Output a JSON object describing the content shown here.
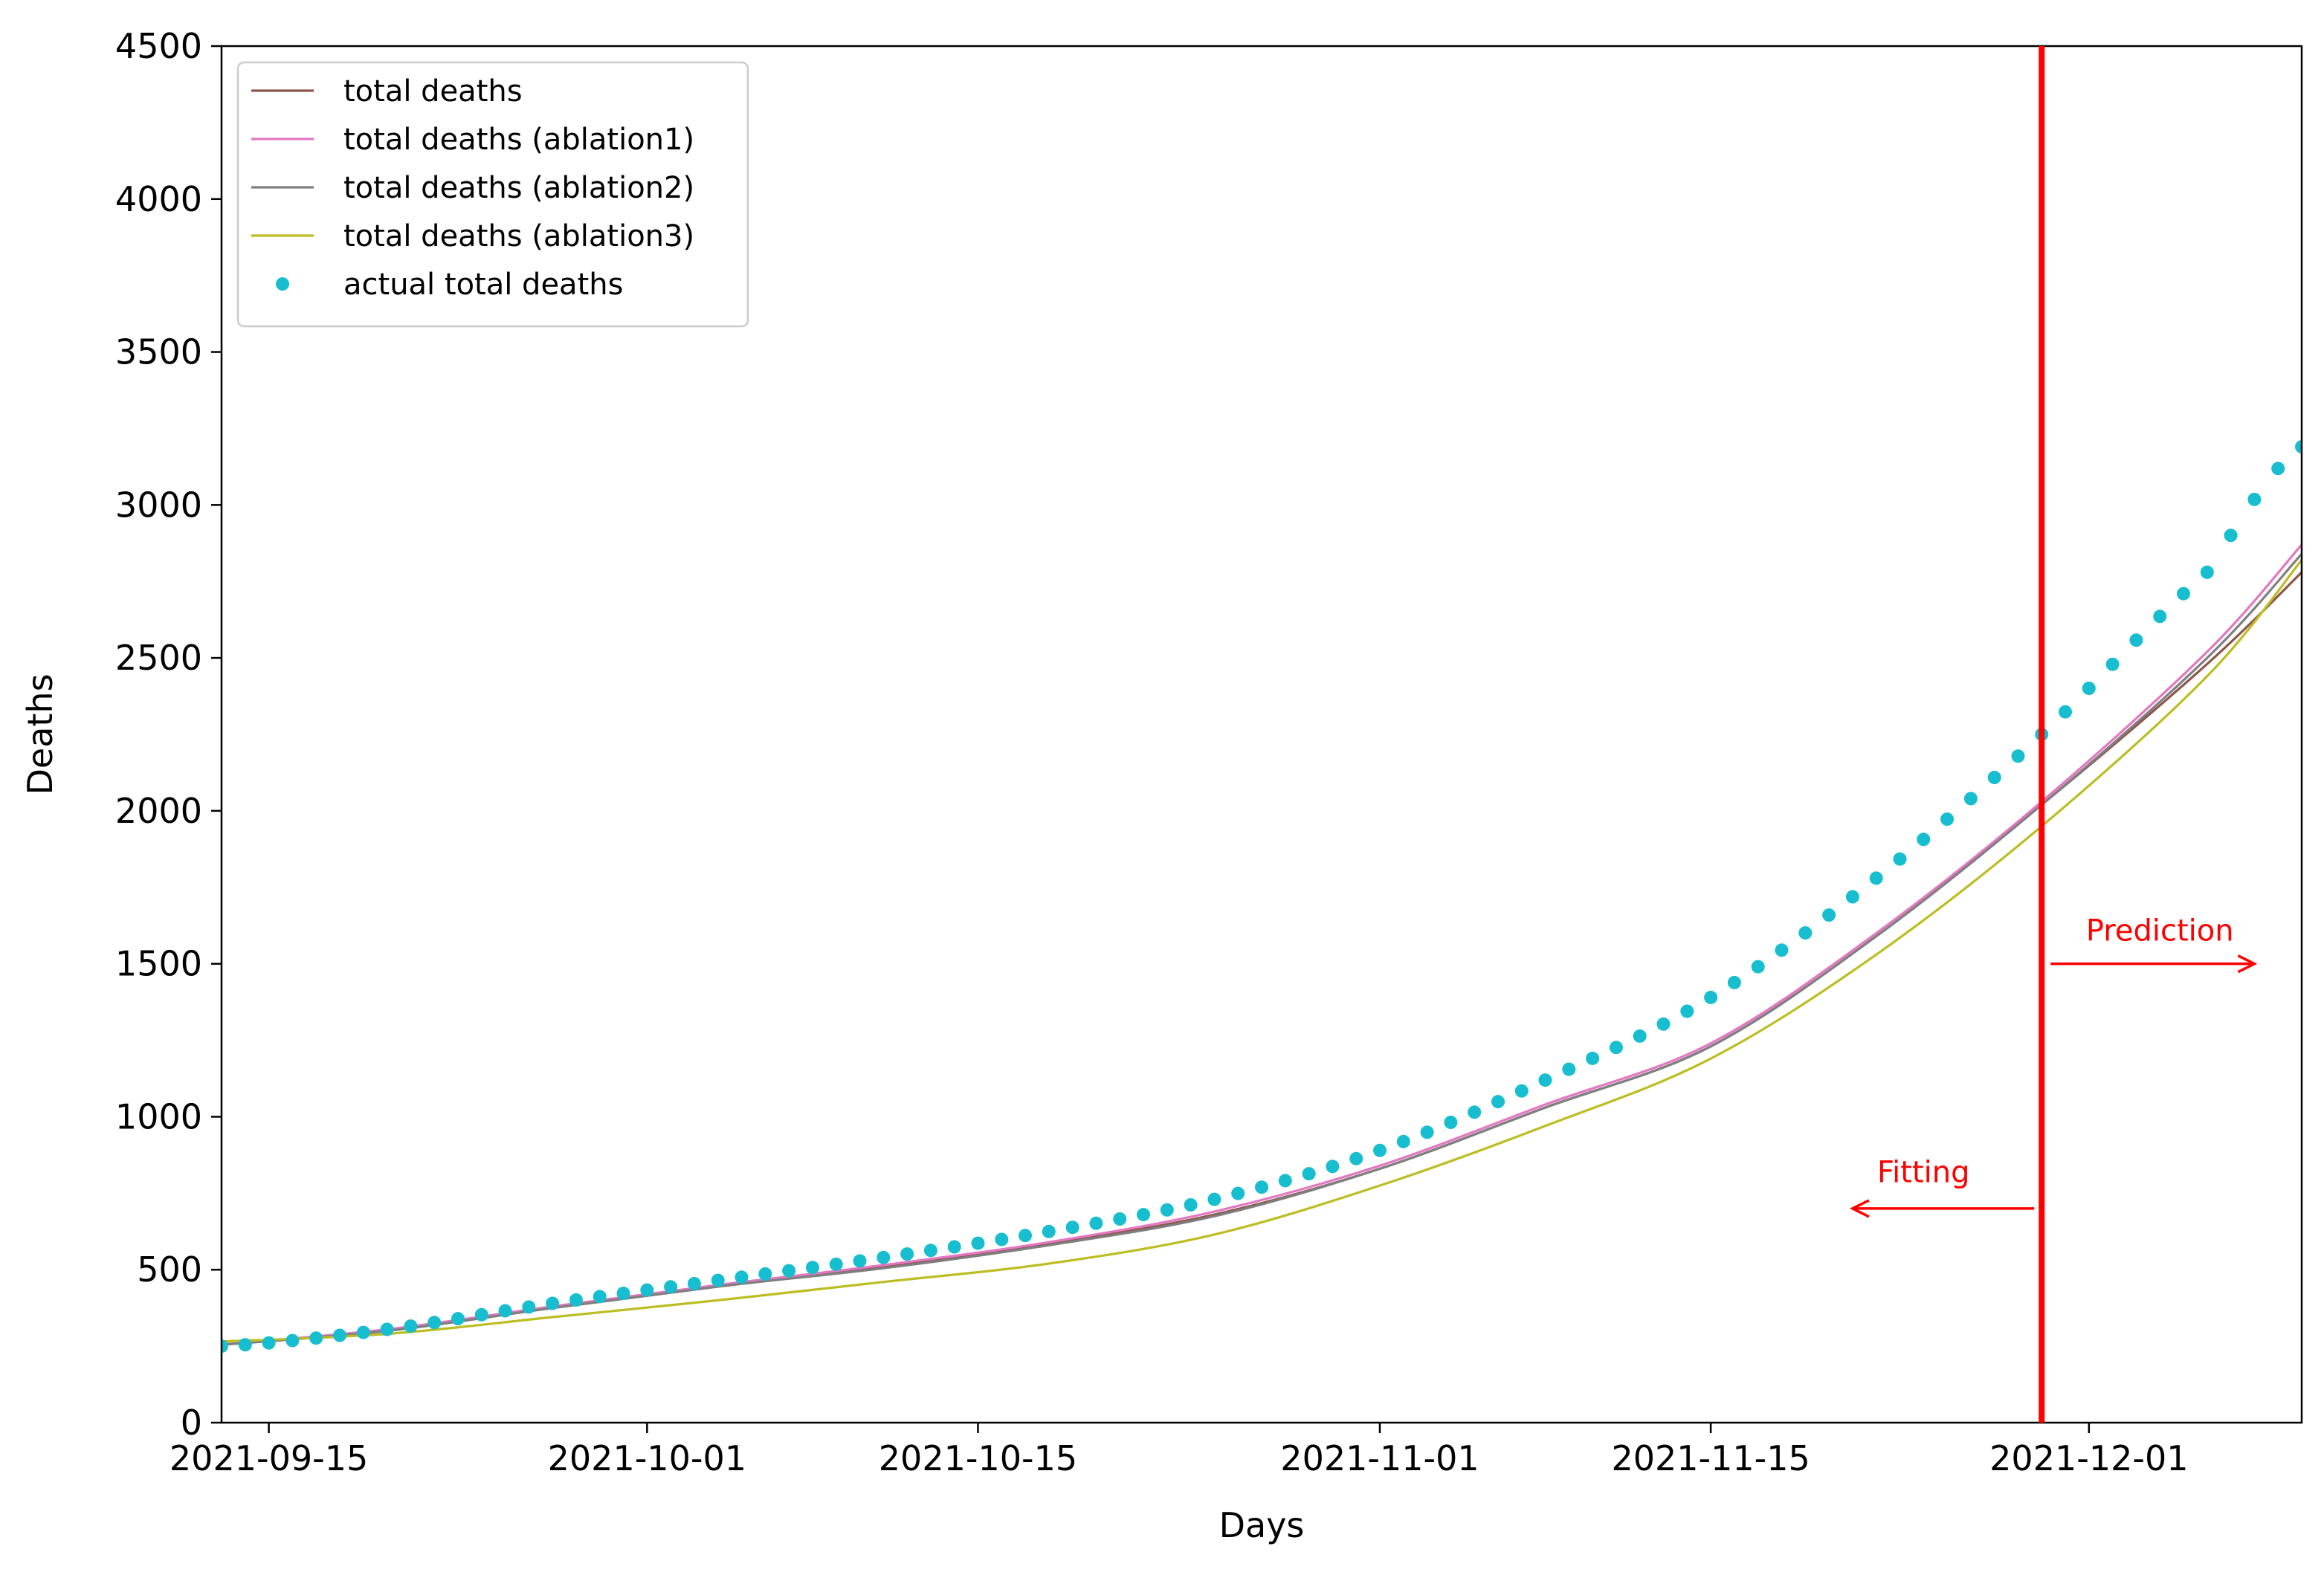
{
  "chart_data": {
    "type": "line",
    "xlabel": "Days",
    "ylabel": "Deaths",
    "x_axis": {
      "type": "date",
      "range": [
        "2021-09-13",
        "2021-12-10"
      ],
      "ticks": [
        "2021-09-15",
        "2021-10-01",
        "2021-10-15",
        "2021-11-01",
        "2021-11-15",
        "2021-12-01"
      ]
    },
    "y_axis": {
      "range": [
        0,
        4500
      ],
      "ticks": [
        0,
        500,
        1000,
        1500,
        2000,
        2500,
        3000,
        3500,
        4000,
        4500
      ],
      "tick_labels": [
        "0",
        "500",
        "1000",
        "1500",
        "2000",
        "2500",
        "3000",
        "3500",
        "4000",
        "4500"
      ]
    },
    "grid": false,
    "legend": {
      "position": "top-left",
      "entries": [
        {
          "label": "total deaths",
          "color": "#8c564b",
          "marker": "line"
        },
        {
          "label": "total deaths (ablation1)",
          "color": "#e377c2",
          "marker": "line"
        },
        {
          "label": "total deaths (ablation2)",
          "color": "#7f7f7f",
          "marker": "line"
        },
        {
          "label": "total deaths (ablation3)",
          "color": "#bcbd22",
          "marker": "line"
        },
        {
          "label": "actual total deaths",
          "color": "#17becf",
          "marker": "dot"
        }
      ]
    },
    "series": [
      {
        "name": "total deaths",
        "color": "#8c564b",
        "style": "line",
        "points": [
          [
            "2021-09-13",
            255
          ],
          [
            "2021-09-20",
            300
          ],
          [
            "2021-09-27",
            375
          ],
          [
            "2021-10-04",
            445
          ],
          [
            "2021-10-11",
            510
          ],
          [
            "2021-10-18",
            585
          ],
          [
            "2021-10-25",
            680
          ],
          [
            "2021-11-01",
            830
          ],
          [
            "2021-11-08",
            1030
          ],
          [
            "2021-11-15",
            1230
          ],
          [
            "2021-11-22",
            1590
          ],
          [
            "2021-11-29",
            2020
          ],
          [
            "2021-12-06",
            2480
          ],
          [
            "2021-12-10",
            2780
          ]
        ]
      },
      {
        "name": "total deaths (ablation1)",
        "color": "#e377c2",
        "style": "line",
        "points": [
          [
            "2021-09-13",
            255
          ],
          [
            "2021-09-20",
            305
          ],
          [
            "2021-09-27",
            380
          ],
          [
            "2021-10-04",
            450
          ],
          [
            "2021-10-11",
            515
          ],
          [
            "2021-10-18",
            590
          ],
          [
            "2021-10-25",
            690
          ],
          [
            "2021-11-01",
            840
          ],
          [
            "2021-11-08",
            1040
          ],
          [
            "2021-11-15",
            1240
          ],
          [
            "2021-11-22",
            1600
          ],
          [
            "2021-11-29",
            2030
          ],
          [
            "2021-12-06",
            2520
          ],
          [
            "2021-12-10",
            2870
          ]
        ]
      },
      {
        "name": "total deaths (ablation2)",
        "color": "#7f7f7f",
        "style": "line",
        "points": [
          [
            "2021-09-13",
            255
          ],
          [
            "2021-09-20",
            300
          ],
          [
            "2021-09-27",
            375
          ],
          [
            "2021-10-04",
            445
          ],
          [
            "2021-10-11",
            505
          ],
          [
            "2021-10-18",
            580
          ],
          [
            "2021-10-25",
            675
          ],
          [
            "2021-11-01",
            830
          ],
          [
            "2021-11-08",
            1030
          ],
          [
            "2021-11-15",
            1230
          ],
          [
            "2021-11-22",
            1590
          ],
          [
            "2021-11-29",
            2020
          ],
          [
            "2021-12-06",
            2500
          ],
          [
            "2021-12-10",
            2840
          ]
        ]
      },
      {
        "name": "total deaths (ablation3)",
        "color": "#bcbd22",
        "style": "line",
        "points": [
          [
            "2021-09-13",
            265
          ],
          [
            "2021-09-20",
            290
          ],
          [
            "2021-09-27",
            345
          ],
          [
            "2021-10-04",
            400
          ],
          [
            "2021-10-11",
            460
          ],
          [
            "2021-10-18",
            520
          ],
          [
            "2021-10-25",
            615
          ],
          [
            "2021-11-01",
            775
          ],
          [
            "2021-11-08",
            970
          ],
          [
            "2021-11-15",
            1190
          ],
          [
            "2021-11-22",
            1530
          ],
          [
            "2021-11-29",
            1950
          ],
          [
            "2021-12-06",
            2440
          ],
          [
            "2021-12-10",
            2820
          ]
        ]
      },
      {
        "name": "actual total deaths",
        "color": "#17becf",
        "style": "scatter",
        "points": [
          [
            "2021-09-13",
            250
          ],
          [
            "2021-09-20",
            305
          ],
          [
            "2021-09-27",
            390
          ],
          [
            "2021-10-04",
            465
          ],
          [
            "2021-10-11",
            540
          ],
          [
            "2021-10-18",
            625
          ],
          [
            "2021-10-25",
            730
          ],
          [
            "2021-11-01",
            890
          ],
          [
            "2021-11-08",
            1120
          ],
          [
            "2021-11-15",
            1390
          ],
          [
            "2021-11-22",
            1780
          ],
          [
            "2021-11-29",
            2250
          ],
          [
            "2021-12-06",
            2780
          ],
          [
            "2021-12-10",
            3190
          ]
        ]
      }
    ],
    "annotations": {
      "vertical_line": {
        "date": "2021-11-29",
        "color": "#ff0000"
      },
      "fitting": {
        "text": "Fitting",
        "color": "#ff0000",
        "arrow_from": [
          "2021-11-29",
          700
        ],
        "arrow_to": [
          "2021-11-21",
          700
        ],
        "label_at": [
          "2021-11-24",
          820
        ]
      },
      "prediction": {
        "text": "Prediction",
        "color": "#ff0000",
        "arrow_from": [
          "2021-11-29",
          1500
        ],
        "arrow_to": [
          "2021-12-08",
          1500
        ],
        "label_at": [
          "2021-12-04",
          1610
        ]
      }
    }
  }
}
